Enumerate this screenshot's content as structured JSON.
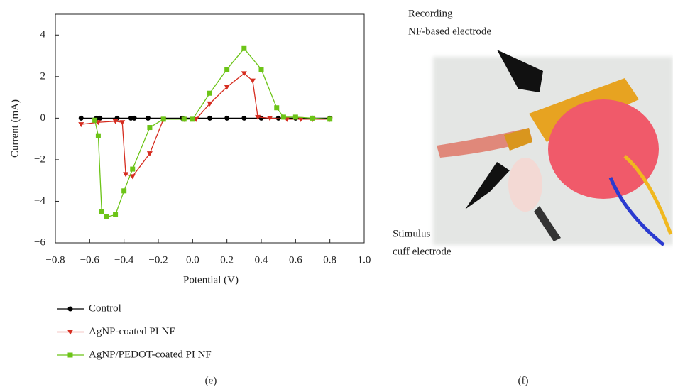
{
  "chart_data": {
    "type": "line",
    "xlabel": "Potential (V)",
    "ylabel": "Current (mA)",
    "xlim": [
      -0.8,
      1.0
    ],
    "ylim": [
      -6,
      5
    ],
    "xticks": [
      {
        "value": -0.8,
        "label": "−0.8"
      },
      {
        "value": -0.6,
        "label": "−0.6"
      },
      {
        "value": -0.4,
        "label": "−0.4"
      },
      {
        "value": -0.2,
        "label": "−0.2"
      },
      {
        "value": 0,
        "label": "0.0"
      },
      0.2,
      0.4,
      0.6,
      0.8,
      {
        "value": 1,
        "label": "1.0"
      }
    ],
    "yticks": [
      {
        "value": -6,
        "label": "−6"
      },
      {
        "value": -4,
        "label": "−4"
      },
      {
        "value": -2,
        "label": "−2"
      },
      0,
      2,
      4
    ],
    "series": [
      {
        "name": "Control",
        "color": "#000000",
        "marker": "circle",
        "x": [
          -0.65,
          -0.56,
          -0.54,
          -0.44,
          -0.36,
          -0.34,
          -0.26,
          -0.06,
          0.1,
          0.2,
          0.3,
          0.4,
          0.5,
          0.6,
          0.7,
          0.8
        ],
        "values": [
          0,
          0,
          0,
          0,
          0,
          0,
          0,
          0,
          0,
          0,
          0,
          0,
          0,
          0,
          0,
          0
        ]
      },
      {
        "name": "AgNP-coated PI NF",
        "color": "#d62d20",
        "marker": "triangle",
        "x": [
          -0.65,
          -0.55,
          -0.45,
          -0.41,
          -0.39,
          -0.35,
          -0.25,
          -0.17,
          -0.05,
          0.02,
          0.1,
          0.2,
          0.3,
          0.35,
          0.38,
          0.45,
          0.55,
          0.63,
          0.7,
          0.8
        ],
        "values": [
          -0.3,
          -0.2,
          -0.15,
          -0.2,
          -2.7,
          -2.8,
          -1.7,
          -0.05,
          -0.05,
          -0.05,
          0.7,
          1.5,
          2.15,
          1.8,
          0.05,
          0,
          -0.05,
          -0.05,
          -0.05,
          -0.05
        ]
      },
      {
        "name": "AgNP/PEDOT-coated PI NF",
        "color": "#6cc417",
        "marker": "square",
        "x": [
          -0.57,
          -0.55,
          -0.53,
          -0.5,
          -0.45,
          -0.4,
          -0.35,
          -0.25,
          -0.17,
          -0.05,
          0.0,
          0.1,
          0.2,
          0.3,
          0.4,
          0.49,
          0.53,
          0.6,
          0.7,
          0.8
        ],
        "values": [
          -0.1,
          -0.85,
          -4.5,
          -4.75,
          -4.65,
          -3.5,
          -2.45,
          -0.45,
          -0.05,
          -0.05,
          -0.05,
          1.2,
          2.35,
          3.35,
          2.35,
          0.5,
          0.05,
          0.05,
          0,
          -0.05
        ]
      }
    ]
  },
  "panel_labels": [
    "(e)",
    "(f)"
  ],
  "photo_labels": {
    "top": [
      "Recording",
      "NF-based electrode"
    ],
    "bottom": [
      "Stimulus",
      "cuff electrode"
    ]
  }
}
